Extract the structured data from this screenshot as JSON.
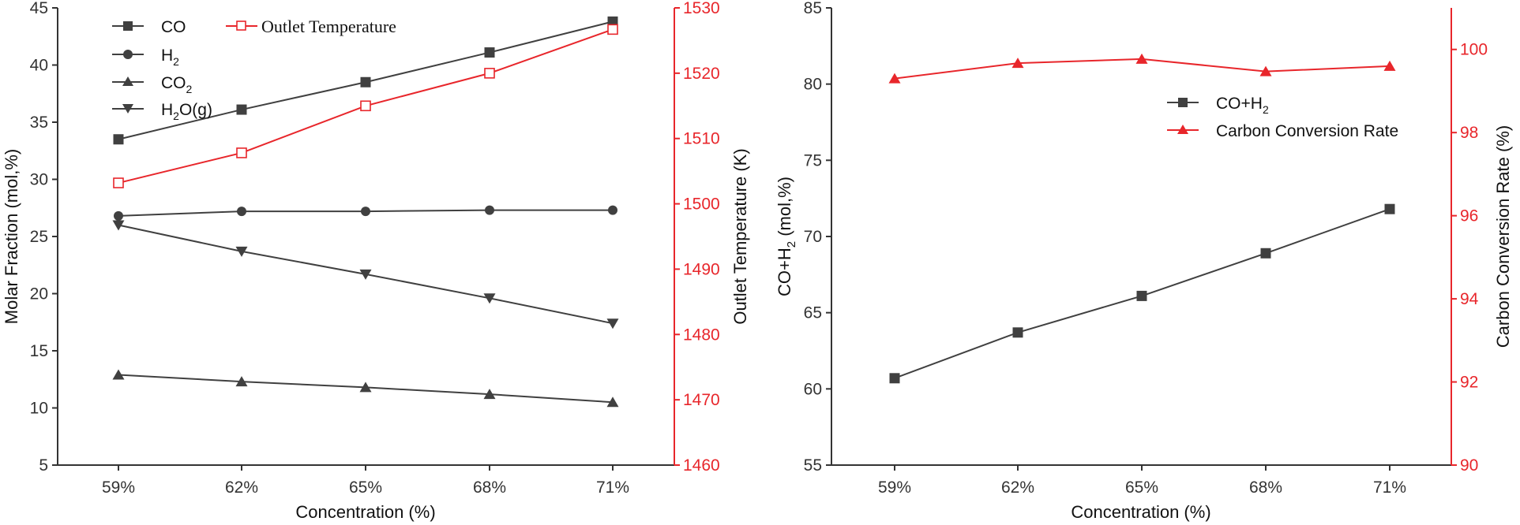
{
  "colors": {
    "series_dark": "#404040",
    "series_red": "#e8262b",
    "axis": "#333333"
  },
  "chart_data": [
    {
      "type": "line",
      "name": "left-chart",
      "categories": [
        "59%",
        "62%",
        "65%",
        "68%",
        "71%"
      ],
      "xlabel": "Concentration (%)",
      "ylabel": "Molar Fraction (mol,%)",
      "ylabel_right": "Outlet Temperature (K)",
      "ylim": [
        5,
        45
      ],
      "yticks": [
        "5",
        "10",
        "15",
        "20",
        "25",
        "30",
        "35",
        "40",
        "45"
      ],
      "ylim_right": [
        1460,
        1530
      ],
      "yticks_right": [
        "1460",
        "1470",
        "1480",
        "1490",
        "1500",
        "1510",
        "1520",
        "1530"
      ],
      "series": [
        {
          "name": "CO",
          "axis": "left",
          "marker": "square",
          "values": [
            33.5,
            36.1,
            38.5,
            41.1,
            43.8
          ]
        },
        {
          "name": "H2",
          "label_main": "H",
          "label_sub": "2",
          "label_tail": "",
          "axis": "left",
          "marker": "circle",
          "values": [
            26.8,
            27.2,
            27.2,
            27.3,
            27.3
          ]
        },
        {
          "name": "CO2",
          "label_main": "CO",
          "label_sub": "2",
          "label_tail": "",
          "axis": "left",
          "marker": "triangle-up",
          "values": [
            12.9,
            12.3,
            11.8,
            11.2,
            10.5
          ]
        },
        {
          "name": "H2O(g)",
          "label_main": "H",
          "label_sub": "2",
          "label_tail": "O(g)",
          "axis": "left",
          "marker": "triangle-down",
          "values": [
            26.0,
            23.7,
            21.7,
            19.6,
            17.4
          ]
        },
        {
          "name": "Outlet Temperature",
          "axis": "right",
          "marker": "open-square",
          "values": [
            1503.2,
            1507.8,
            1515.0,
            1520.0,
            1526.7
          ]
        }
      ],
      "legend": "top-left"
    },
    {
      "type": "line",
      "name": "right-chart",
      "categories": [
        "59%",
        "62%",
        "65%",
        "68%",
        "71%"
      ],
      "xlabel": "Concentration (%)",
      "ylabel_main": "CO+H",
      "ylabel_sub": "2",
      "ylabel_tail": " (mol,%)",
      "ylabel_right": "Carbon Conversion Rate (%)",
      "ylim": [
        55,
        85
      ],
      "yticks": [
        "55",
        "60",
        "65",
        "70",
        "75",
        "80",
        "85"
      ],
      "ylim_right": [
        90,
        101
      ],
      "yticks_right": [
        "90",
        "92",
        "94",
        "96",
        "98",
        "100"
      ],
      "series": [
        {
          "name": "CO+H2",
          "label_main": "CO+H",
          "label_sub": "2",
          "axis": "left",
          "marker": "square",
          "values": [
            60.7,
            63.7,
            66.1,
            68.9,
            71.8
          ]
        },
        {
          "name": "Carbon Conversion Rate",
          "axis": "right",
          "marker": "triangle-up",
          "values": [
            99.3,
            99.67,
            99.77,
            99.47,
            99.6
          ]
        }
      ],
      "legend": "center-right"
    }
  ]
}
